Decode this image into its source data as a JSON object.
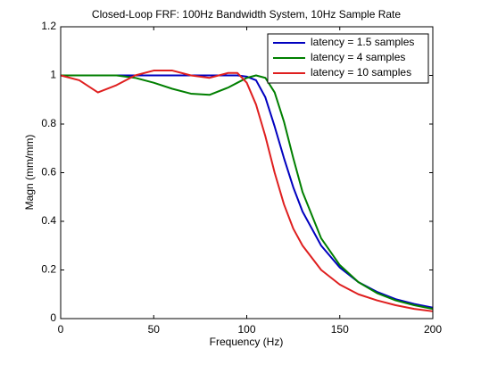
{
  "chart_data": {
    "type": "line",
    "title": "Closed-Loop FRF: 100Hz Bandwidth System, 10Hz Sample Rate",
    "x_label": "Frequency (Hz)",
    "y_label": "Magn (mm/mm)",
    "x": [
      0,
      10,
      20,
      30,
      40,
      50,
      60,
      70,
      80,
      90,
      95,
      100,
      105,
      110,
      115,
      120,
      125,
      130,
      140,
      150,
      160,
      170,
      180,
      190,
      200
    ],
    "series": [
      {
        "name": "latency = 1.5 samples",
        "color": "#0000bf",
        "values": [
          1,
          1,
          1,
          1,
          1,
          1,
          1,
          1,
          1,
          1,
          1,
          0.995,
          0.98,
          0.91,
          0.79,
          0.66,
          0.54,
          0.44,
          0.3,
          0.21,
          0.15,
          0.11,
          0.08,
          0.06,
          0.045
        ]
      },
      {
        "name": "latency = 4 samples",
        "color": "#007f00",
        "values": [
          1,
          1,
          1,
          1,
          0.99,
          0.97,
          0.945,
          0.925,
          0.92,
          0.95,
          0.97,
          0.99,
          1.0,
          0.99,
          0.93,
          0.81,
          0.66,
          0.52,
          0.33,
          0.22,
          0.15,
          0.105,
          0.075,
          0.055,
          0.04
        ]
      },
      {
        "name": "latency = 10 samples",
        "color": "#df1f1f",
        "values": [
          1,
          0.98,
          0.93,
          0.96,
          1.0,
          1.02,
          1.02,
          1.0,
          0.99,
          1.01,
          1.01,
          0.97,
          0.88,
          0.75,
          0.6,
          0.47,
          0.37,
          0.3,
          0.2,
          0.14,
          0.1,
          0.075,
          0.055,
          0.04,
          0.03
        ]
      }
    ],
    "xlim": [
      0,
      200
    ],
    "xticks": [
      0,
      50,
      100,
      150,
      200
    ],
    "ylim": [
      0,
      1.2
    ],
    "yticks": [
      0,
      0.2,
      0.4,
      0.6,
      0.8,
      1,
      1.2
    ],
    "legend": "upper right"
  }
}
